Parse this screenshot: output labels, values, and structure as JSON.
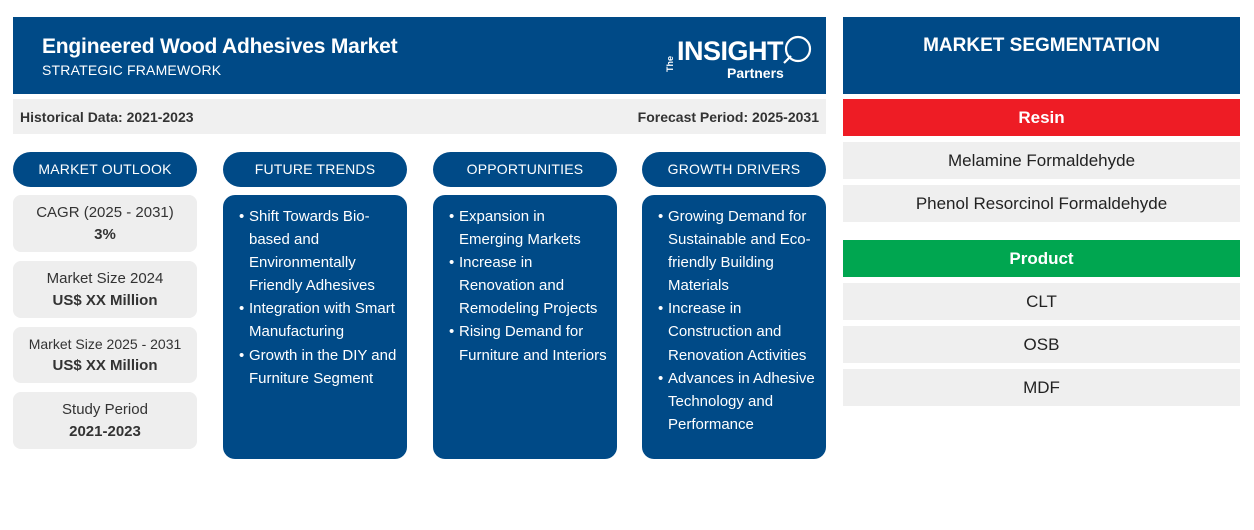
{
  "header": {
    "title": "Engineered Wood Adhesives Market",
    "subtitle": "STRATEGIC FRAMEWORK",
    "logo": {
      "the": "The",
      "insight": "INSIGHT",
      "partners": "Partners"
    }
  },
  "period": {
    "historical": "Historical Data: 2021-2023",
    "forecast": "Forecast Period: 2025-2031"
  },
  "columns": {
    "outlook": "MARKET OUTLOOK",
    "trends": "FUTURE TRENDS",
    "opportunities": "OPPORTUNITIES",
    "drivers": "GROWTH DRIVERS"
  },
  "stats": [
    {
      "label": "CAGR (2025 - 2031)",
      "value": "3%"
    },
    {
      "label": "Market Size 2024",
      "value": "US$ XX Million"
    },
    {
      "label": "Market Size 2025 - 2031",
      "value": "US$ XX Million"
    },
    {
      "label": "Study Period",
      "value": "2021-2023"
    }
  ],
  "trends": [
    "Shift Towards Bio-based and Environmentally Friendly Adhesives",
    "Integration with Smart Manufacturing",
    "Growth in the DIY and Furniture Segment"
  ],
  "opportunities": [
    "Expansion in Emerging Markets",
    "Increase in Renovation and Remodeling Projects",
    "Rising Demand for Furniture and Interiors"
  ],
  "drivers": [
    "Growing Demand for Sustainable and Eco-friendly Building Materials",
    "Increase in Construction and Renovation Activities",
    "Advances in Adhesive Technology and Performance"
  ],
  "segmentation": {
    "title": "MARKET SEGMENTATION",
    "resin": {
      "label": "Resin",
      "color": "#ee1c25",
      "items": [
        "Melamine Formaldehyde",
        "Phenol Resorcinol Formaldehyde"
      ]
    },
    "product": {
      "label": "Product",
      "color": "#00a650",
      "items": [
        "CLT",
        "OSB",
        "MDF"
      ]
    }
  },
  "colors": {
    "primary": "#004a87",
    "panel": "#eeeeee"
  }
}
